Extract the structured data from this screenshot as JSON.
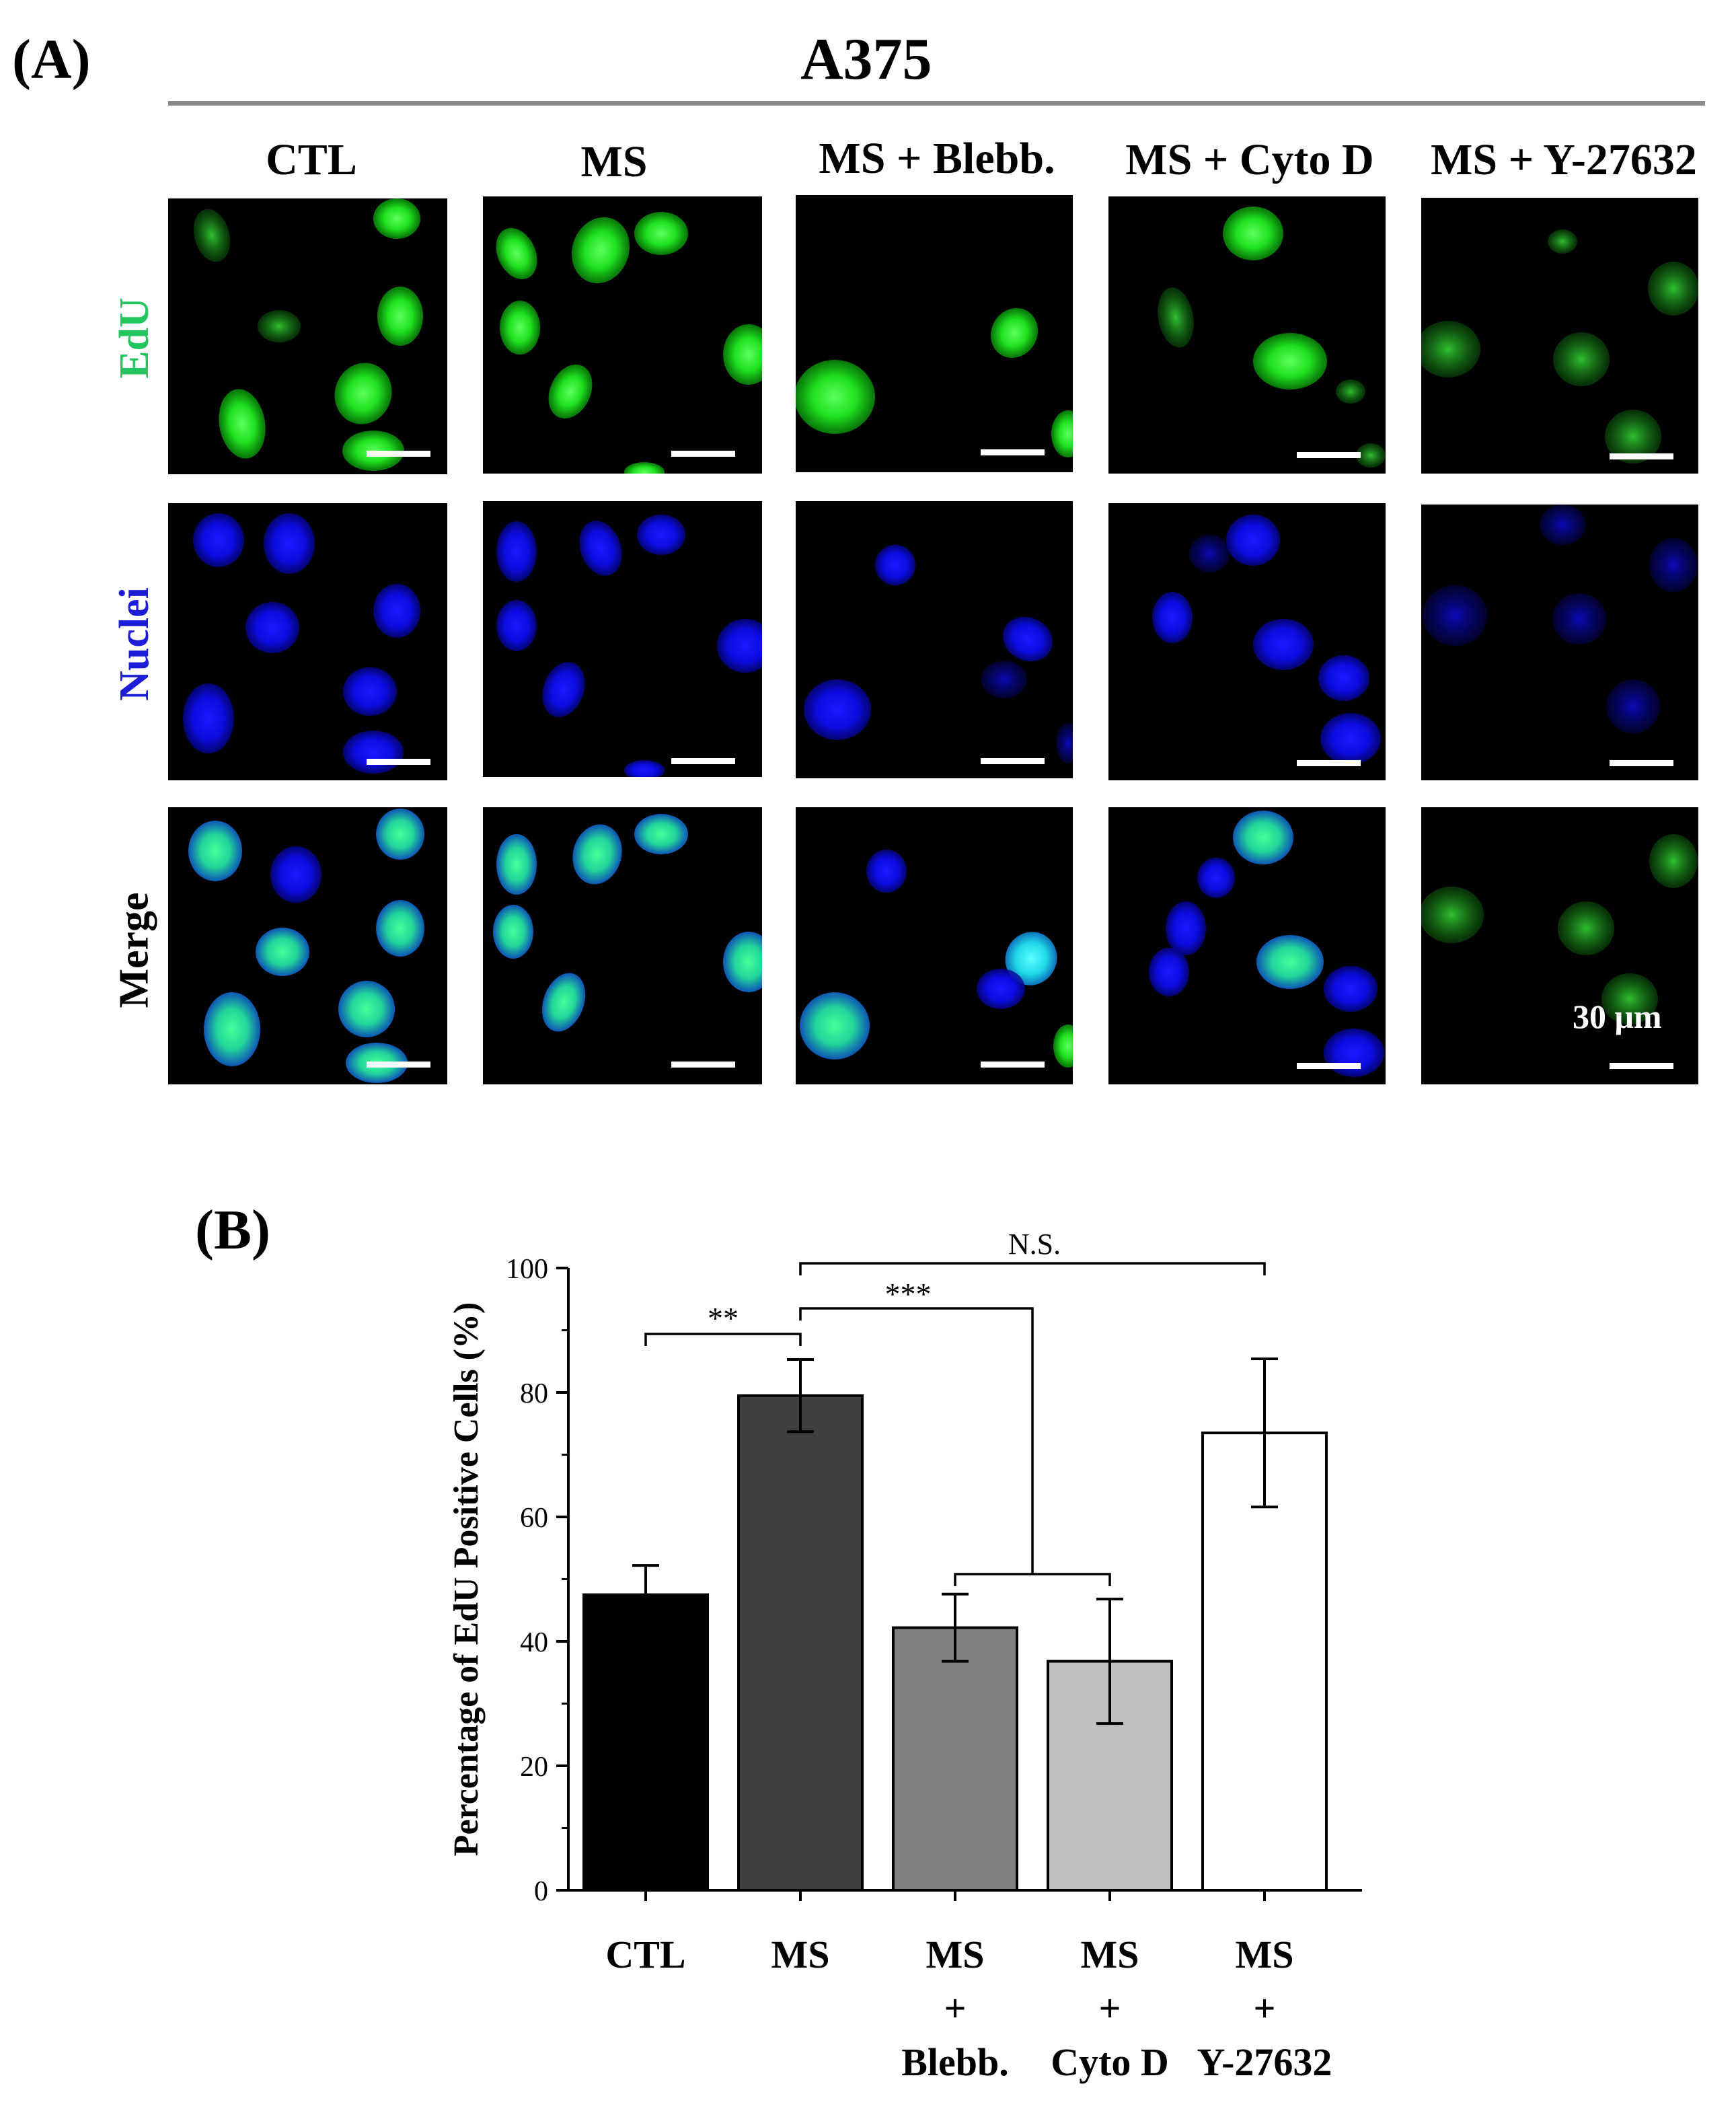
{
  "panel_a": {
    "label": "(A)",
    "cell_line": "A375",
    "conditions": [
      "CTL",
      "MS",
      "MS + Blebb.",
      "MS + Cyto D",
      "MS + Y-27632"
    ],
    "rows": [
      {
        "label": "EdU",
        "color": "#22c55e"
      },
      {
        "label": "Nuclei",
        "color": "#1d1dd8"
      },
      {
        "label": "Merge",
        "color": "#000000"
      }
    ],
    "scale_bar_label": "30 μm"
  },
  "panel_b": {
    "label": "(B)"
  },
  "chart_data": {
    "type": "bar",
    "ylabel": "Percentage of EdU Positive Cells (%)",
    "xlabel": "",
    "ylim": [
      0,
      100
    ],
    "yticks": [
      0,
      20,
      40,
      60,
      80,
      100
    ],
    "categories": [
      [
        "CTL"
      ],
      [
        "MS"
      ],
      [
        "MS",
        "+",
        "Blebb."
      ],
      [
        "MS",
        "+",
        "Cyto D"
      ],
      [
        "MS",
        "+",
        "Y-27632"
      ]
    ],
    "values": [
      47.5,
      79.5,
      42.2,
      36.8,
      73.5
    ],
    "errors": [
      4.7,
      5.8,
      5.4,
      10.0,
      11.9
    ],
    "bar_colors": [
      "#000000",
      "#3f3f3f",
      "#808080",
      "#c0c0c0",
      "#ffffff"
    ],
    "significance": [
      {
        "from": 0,
        "to": 1,
        "label": "**"
      },
      {
        "from": 1,
        "to": [
          2,
          3
        ],
        "label": "***"
      },
      {
        "from": 1,
        "to": 4,
        "label": "N.S."
      }
    ]
  }
}
